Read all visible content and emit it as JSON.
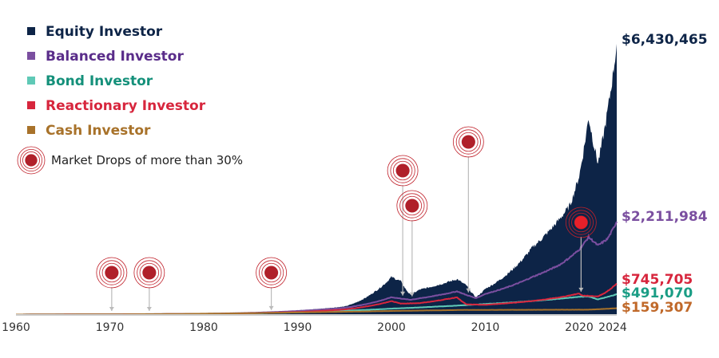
{
  "chart_data": {
    "type": "area",
    "xlim": [
      1960,
      2024
    ],
    "ylim": [
      0,
      6430465
    ],
    "x_ticks": [
      "1960",
      "1970",
      "1980",
      "1990",
      "2000",
      "2010",
      "2020",
      "2024"
    ],
    "legend_placement": "top-left",
    "series": [
      {
        "name": "Equity Investor",
        "color": "#0d2447",
        "kind": "area",
        "end_label": "$6,430,465",
        "points": [
          [
            1960,
            10000
          ],
          [
            1970,
            17000
          ],
          [
            1975,
            20000
          ],
          [
            1980,
            30000
          ],
          [
            1985,
            55000
          ],
          [
            1987,
            80000
          ],
          [
            1988,
            75000
          ],
          [
            1990,
            110000
          ],
          [
            1995,
            200000
          ],
          [
            1998,
            520000
          ],
          [
            2000,
            900000
          ],
          [
            2001,
            800000
          ],
          [
            2002,
            480000
          ],
          [
            2003,
            600000
          ],
          [
            2007,
            850000
          ],
          [
            2008,
            700000
          ],
          [
            2009,
            420000
          ],
          [
            2010,
            620000
          ],
          [
            2013,
            1100000
          ],
          [
            2015,
            1600000
          ],
          [
            2018,
            2300000
          ],
          [
            2019,
            2600000
          ],
          [
            2020,
            3300000
          ],
          [
            2021,
            4700000
          ],
          [
            2022,
            3600000
          ],
          [
            2023,
            4800000
          ],
          [
            2024,
            6430465
          ]
        ]
      },
      {
        "name": "Balanced Investor",
        "color": "#7b4fa0",
        "kind": "line",
        "end_label": "$2,211,984",
        "points": [
          [
            1960,
            10000
          ],
          [
            1970,
            16000
          ],
          [
            1980,
            28000
          ],
          [
            1985,
            50000
          ],
          [
            1990,
            95000
          ],
          [
            1995,
            170000
          ],
          [
            2000,
            420000
          ],
          [
            2002,
            360000
          ],
          [
            2007,
            560000
          ],
          [
            2009,
            400000
          ],
          [
            2010,
            500000
          ],
          [
            2015,
            900000
          ],
          [
            2018,
            1200000
          ],
          [
            2020,
            1550000
          ],
          [
            2021,
            1850000
          ],
          [
            2022,
            1650000
          ],
          [
            2023,
            1800000
          ],
          [
            2024,
            2211984
          ]
        ]
      },
      {
        "name": "Bond Investor",
        "color": "#5fc9b6",
        "kind": "line",
        "end_label": "$491,070",
        "points": [
          [
            1960,
            10000
          ],
          [
            1970,
            14000
          ],
          [
            1980,
            22000
          ],
          [
            1985,
            40000
          ],
          [
            1990,
            60000
          ],
          [
            1995,
            100000
          ],
          [
            2000,
            150000
          ],
          [
            2005,
            200000
          ],
          [
            2010,
            260000
          ],
          [
            2015,
            330000
          ],
          [
            2020,
            430000
          ],
          [
            2021,
            440000
          ],
          [
            2022,
            370000
          ],
          [
            2024,
            491070
          ]
        ]
      },
      {
        "name": "Reactionary Investor",
        "color": "#d7263d",
        "kind": "line",
        "end_label": "$745,705",
        "points": [
          [
            1960,
            10000
          ],
          [
            1970,
            15000
          ],
          [
            1980,
            24000
          ],
          [
            1985,
            42000
          ],
          [
            1990,
            70000
          ],
          [
            1995,
            130000
          ],
          [
            2000,
            330000
          ],
          [
            2001,
            270000
          ],
          [
            2003,
            280000
          ],
          [
            2007,
            420000
          ],
          [
            2008,
            250000
          ],
          [
            2010,
            240000
          ],
          [
            2015,
            330000
          ],
          [
            2018,
            420000
          ],
          [
            2020,
            510000
          ],
          [
            2020.3,
            460000
          ],
          [
            2022,
            440000
          ],
          [
            2023,
            560000
          ],
          [
            2024,
            745705
          ]
        ]
      },
      {
        "name": "Cash Investor",
        "color": "#a8722a",
        "kind": "line",
        "end_label": "$159,307",
        "points": [
          [
            1960,
            10000
          ],
          [
            1970,
            14000
          ],
          [
            1980,
            30000
          ],
          [
            1990,
            60000
          ],
          [
            2000,
            95000
          ],
          [
            2008,
            120000
          ],
          [
            2015,
            122000
          ],
          [
            2021,
            125000
          ],
          [
            2024,
            159307
          ]
        ]
      }
    ],
    "market_drops": {
      "label": "Market Drops of more than 30%",
      "years": [
        1970,
        1974,
        1987,
        2001,
        2002,
        2008,
        2020
      ]
    },
    "end_label_colors": {
      "Equity Investor": "#0d2447",
      "Balanced Investor": "#7b4fa0",
      "Bond Investor": "#1a9d85",
      "Reactionary Investor": "#d7263d",
      "Cash Investor": "#c0692a"
    },
    "legend_text_colors": [
      "#0d2447",
      "#5a2d8a",
      "#14907a",
      "#d7263d",
      "#a8722a"
    ]
  }
}
